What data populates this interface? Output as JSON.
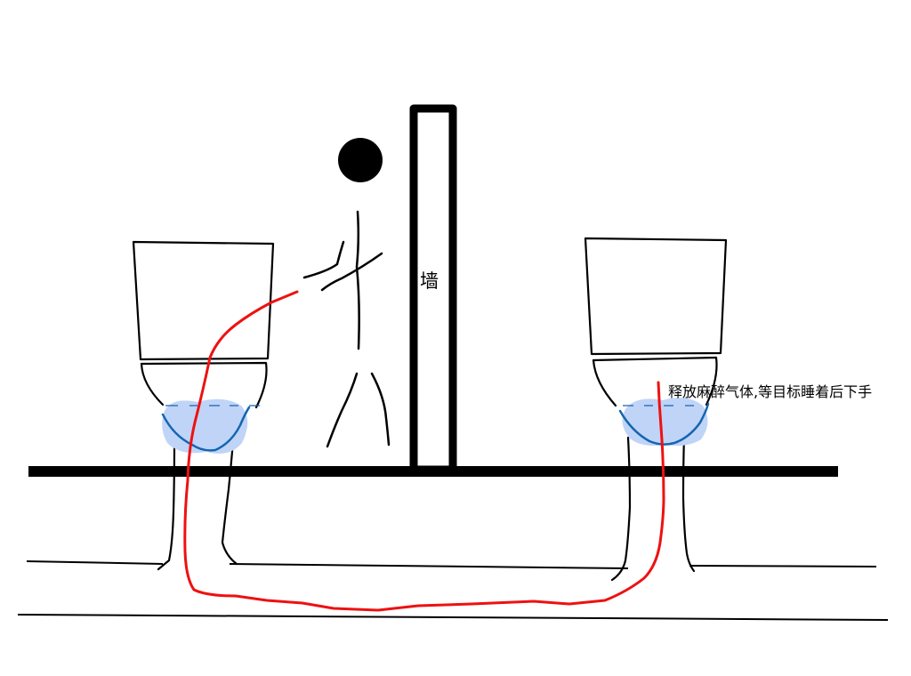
{
  "labels": {
    "wall": "墙",
    "note": "释放麻醉气体,等目标睡着后下手"
  },
  "colors": {
    "ink": "#000000",
    "pipe_line": "#ee1111",
    "water_fill": "#bfd4f7",
    "water_edge": "#1565b0"
  },
  "icons": {
    "person": "stick-figure",
    "toilet": "toilet-drawing"
  }
}
